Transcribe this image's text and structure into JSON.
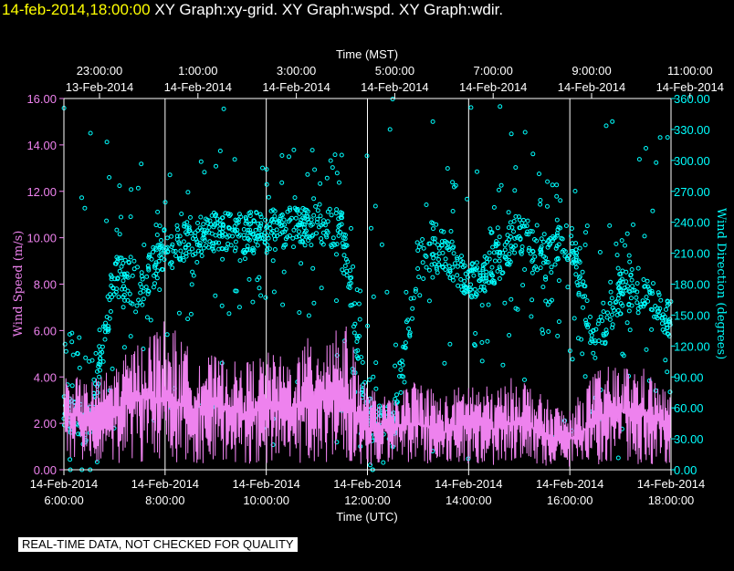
{
  "header": {
    "timestamp": "14-feb-2014,18:00:00",
    "graphs": "XY Graph:xy-grid.  XY Graph:wspd.  XY Graph:wdir."
  },
  "footer": {
    "quality_note": "REAL-TIME DATA, NOT CHECKED FOR QUALITY"
  },
  "colors": {
    "speed": "#ee82ee",
    "direction": "#00ffff",
    "grid": "#ffffff",
    "background": "#000000"
  },
  "chart_data": {
    "type": "scatter",
    "top_axis": {
      "title": "Time (MST)",
      "ticks": [
        {
          "time": "23:00:00",
          "date": "13-Feb-2014"
        },
        {
          "time": "1:00:00",
          "date": "14-Feb-2014"
        },
        {
          "time": "3:00:00",
          "date": "14-Feb-2014"
        },
        {
          "time": "5:00:00",
          "date": "14-Feb-2014"
        },
        {
          "time": "7:00:00",
          "date": "14-Feb-2014"
        },
        {
          "time": "9:00:00",
          "date": "14-Feb-2014"
        },
        {
          "time": "11:00:00",
          "date": "14-Feb-2014"
        }
      ]
    },
    "bottom_axis": {
      "title": "Time (UTC)",
      "ticks": [
        {
          "time": "6:00:00",
          "date": "14-Feb-2014"
        },
        {
          "time": "8:00:00",
          "date": "14-Feb-2014"
        },
        {
          "time": "10:00:00",
          "date": "14-Feb-2014"
        },
        {
          "time": "12:00:00",
          "date": "14-Feb-2014"
        },
        {
          "time": "14:00:00",
          "date": "14-Feb-2014"
        },
        {
          "time": "16:00:00",
          "date": "14-Feb-2014"
        },
        {
          "time": "18:00:00",
          "date": "14-Feb-2014"
        }
      ],
      "range_hours_utc": [
        6,
        18
      ]
    },
    "left_axis": {
      "title": "Wind Speed (m/s)",
      "ylim": [
        0,
        16
      ],
      "ticks": [
        "0.00",
        "2.00",
        "4.00",
        "6.00",
        "8.00",
        "10.00",
        "12.00",
        "14.00",
        "16.00"
      ]
    },
    "right_axis": {
      "title": "Wind Direction (degrees)",
      "ylim": [
        0,
        360
      ],
      "ticks": [
        "0.00",
        "30.00",
        "60.00",
        "90.00",
        "120.00",
        "150.00",
        "180.00",
        "210.00",
        "240.00",
        "270.00",
        "300.00",
        "330.00",
        "360.00"
      ]
    },
    "grid": "vertical lines at bottom-axis ticks",
    "series": [
      {
        "name": "wspd",
        "axis": "left",
        "style": "line",
        "x_hours_utc": [
          6.0,
          6.5,
          7.0,
          7.5,
          8.0,
          8.5,
          9.0,
          9.5,
          10.0,
          10.5,
          11.0,
          11.5,
          12.0,
          12.5,
          13.0,
          13.5,
          14.0,
          14.5,
          15.0,
          15.5,
          16.0,
          16.5,
          17.0,
          17.5,
          18.0
        ],
        "y_mean": [
          2.5,
          2.2,
          2.6,
          3.2,
          3.0,
          2.6,
          2.9,
          2.4,
          2.8,
          2.6,
          3.0,
          3.3,
          1.8,
          1.9,
          2.0,
          1.6,
          2.1,
          1.7,
          2.2,
          1.5,
          1.3,
          2.1,
          2.5,
          2.4,
          1.8
        ],
        "y_max": [
          4.2,
          3.8,
          4.5,
          5.6,
          6.6,
          5.2,
          4.9,
          4.6,
          5.1,
          4.8,
          6.2,
          6.7,
          3.6,
          3.0,
          4.1,
          3.2,
          3.9,
          3.5,
          4.2,
          3.1,
          2.6,
          4.3,
          4.6,
          4.4,
          3.2
        ]
      },
      {
        "name": "wdir",
        "axis": "right",
        "style": "circles",
        "x_hours_utc": [
          6.0,
          6.5,
          7.0,
          7.5,
          8.0,
          8.5,
          9.0,
          9.5,
          10.0,
          10.5,
          11.0,
          11.5,
          12.0,
          12.5,
          13.0,
          13.5,
          14.0,
          14.5,
          15.0,
          15.5,
          16.0,
          16.5,
          17.0,
          17.5,
          18.0
        ],
        "y_typical": [
          60,
          40,
          190,
          175,
          215,
          225,
          230,
          228,
          232,
          236,
          238,
          235,
          50,
          40,
          200,
          215,
          180,
          200,
          230,
          205,
          225,
          120,
          175,
          170,
          140
        ]
      }
    ]
  }
}
